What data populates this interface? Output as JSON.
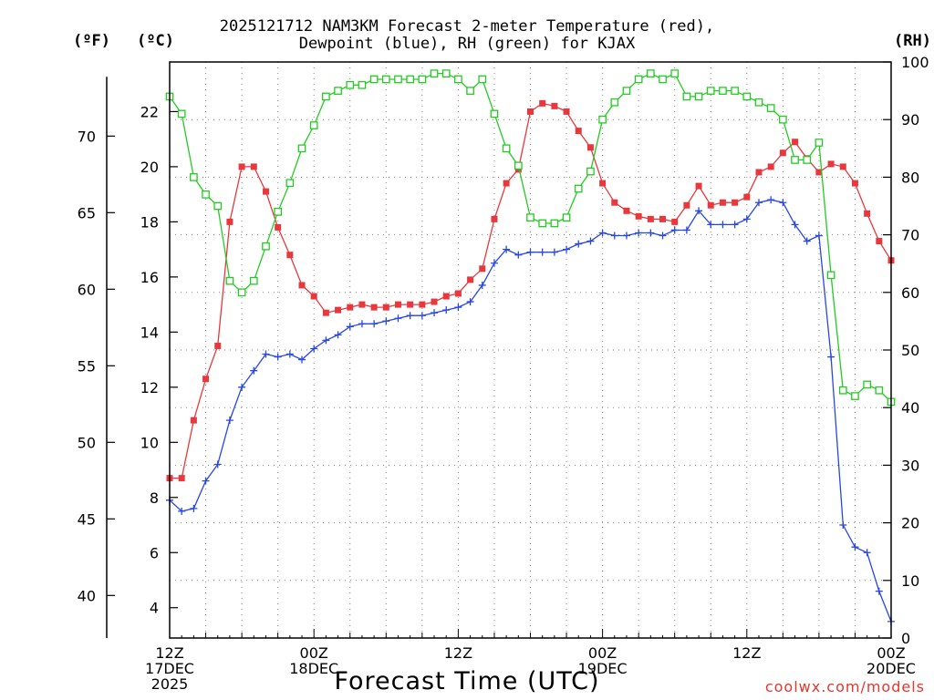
{
  "title": {
    "line1": "2025121712 NAM3KM Forecast 2-meter Temperature (red),",
    "line2": "Dewpoint (blue), RH (green) for KJAX"
  },
  "units": {
    "fahrenheit": "(ºF)",
    "celsius": "(ºC)",
    "rh": "(RH)"
  },
  "xlabel": "Forecast Time (UTC)",
  "credit": "coolwx.com/models",
  "chart_data": {
    "type": "line",
    "title": "2025121712 NAM3KM Forecast 2-meter Temperature (red), Dewpoint (blue), RH (green) for KJAX",
    "xlabel": "Forecast Time (UTC)",
    "x_hours": [
      0,
      1,
      2,
      3,
      4,
      5,
      6,
      7,
      8,
      9,
      10,
      11,
      12,
      13,
      14,
      15,
      16,
      17,
      18,
      19,
      20,
      21,
      22,
      23,
      24,
      25,
      26,
      27,
      28,
      29,
      30,
      31,
      32,
      33,
      34,
      35,
      36,
      37,
      38,
      39,
      40,
      41,
      42,
      43,
      44,
      45,
      46,
      47,
      48,
      49,
      50,
      51,
      52,
      53,
      54,
      55,
      56,
      57,
      58,
      59,
      60
    ],
    "xlim": [
      0,
      60
    ],
    "x_ticks": [
      {
        "hour": 0,
        "lines": [
          "12Z",
          "17DEC",
          "2025"
        ]
      },
      {
        "hour": 12,
        "lines": [
          "00Z",
          "18DEC"
        ]
      },
      {
        "hour": 24,
        "lines": [
          "12Z"
        ]
      },
      {
        "hour": 36,
        "lines": [
          "00Z",
          "19DEC"
        ]
      },
      {
        "hour": 48,
        "lines": [
          "12Z"
        ]
      },
      {
        "hour": 60,
        "lines": [
          "00Z",
          "20DEC"
        ]
      }
    ],
    "y_left_celsius": {
      "label": "(ºC)",
      "ylim": [
        2.9,
        23.8
      ],
      "ticks": [
        4,
        6,
        8,
        10,
        12,
        14,
        16,
        18,
        20,
        22
      ]
    },
    "y_left_fahrenheit": {
      "label": "(ºF)",
      "ticks": [
        40,
        45,
        50,
        55,
        60,
        65,
        70
      ]
    },
    "y_right_rh": {
      "label": "(RH)",
      "ylim": [
        0,
        100
      ],
      "ticks": [
        0,
        10,
        20,
        30,
        40,
        50,
        60,
        70,
        80,
        90,
        100
      ]
    },
    "grid": true,
    "series": [
      {
        "name": "2-meter Temperature",
        "unit": "C",
        "color": "#e8383d",
        "marker": "filled-square",
        "values": [
          8.7,
          8.7,
          10.8,
          12.3,
          13.5,
          18.0,
          20.0,
          20.0,
          19.1,
          17.8,
          16.8,
          15.7,
          15.3,
          14.7,
          14.8,
          14.9,
          15.0,
          14.9,
          14.9,
          15.0,
          15.0,
          15.0,
          15.1,
          15.3,
          15.4,
          15.9,
          16.3,
          18.1,
          19.4,
          19.9,
          22.0,
          22.3,
          22.2,
          22.0,
          21.3,
          20.7,
          19.4,
          18.7,
          18.4,
          18.2,
          18.1,
          18.1,
          18.0,
          18.6,
          19.3,
          18.6,
          18.7,
          18.7,
          18.9,
          19.8,
          20.0,
          20.5,
          20.9,
          20.3,
          19.8,
          20.1,
          20.0,
          19.4,
          18.3,
          17.3,
          16.6
        ]
      },
      {
        "name": "Dewpoint",
        "unit": "C",
        "color": "#2846e6",
        "marker": "plus",
        "values": [
          7.9,
          7.5,
          7.6,
          8.6,
          9.2,
          10.8,
          12.0,
          12.6,
          13.2,
          13.1,
          13.2,
          13.0,
          13.4,
          13.7,
          13.9,
          14.2,
          14.3,
          14.3,
          14.4,
          14.5,
          14.6,
          14.6,
          14.7,
          14.8,
          14.9,
          15.1,
          15.7,
          16.5,
          17.0,
          16.8,
          16.9,
          16.9,
          16.9,
          17.0,
          17.2,
          17.3,
          17.6,
          17.5,
          17.5,
          17.6,
          17.6,
          17.5,
          17.7,
          17.7,
          18.4,
          17.9,
          17.9,
          17.9,
          18.1,
          18.7,
          18.8,
          18.7,
          17.9,
          17.3,
          17.5,
          13.1,
          7.0,
          6.2,
          6.0,
          4.6,
          3.5
        ]
      },
      {
        "name": "RH",
        "unit": "%",
        "color": "#22cc22",
        "marker": "open-square",
        "values": [
          94,
          91,
          80,
          77,
          75,
          62,
          60,
          62,
          68,
          74,
          79,
          85,
          89,
          94,
          95,
          96,
          96,
          97,
          97,
          97,
          97,
          97,
          98,
          98,
          97,
          95,
          97,
          91,
          85,
          82,
          73,
          72,
          72,
          73,
          78,
          81,
          90,
          93,
          95,
          97,
          98,
          97,
          98,
          94,
          94,
          95,
          95,
          95,
          94,
          93,
          92,
          90,
          83,
          83,
          86,
          63,
          43,
          42,
          44,
          43,
          41
        ]
      }
    ]
  }
}
